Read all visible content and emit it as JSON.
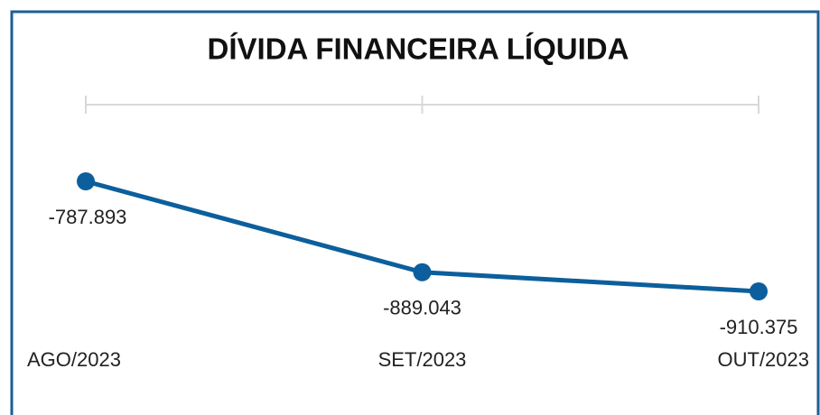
{
  "chart_data": {
    "type": "line",
    "title": "DÍVIDA FINANCEIRA LÍQUIDA",
    "categories": [
      "AGO/2023",
      "SET/2023",
      "OUT/2023"
    ],
    "series": [
      {
        "color": "#0c5f9c",
        "values": [
          -787893,
          -889043,
          -910375
        ],
        "value_labels": [
          "-787.893",
          "-889.043",
          "-910.375"
        ]
      }
    ]
  }
}
